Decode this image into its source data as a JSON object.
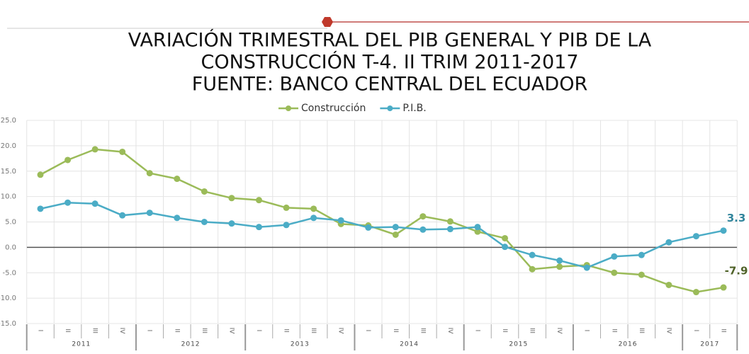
{
  "chart_data": {
    "type": "line",
    "title_lines": [
      "VARIACIÓN TRIMESTRAL DEL PIB GENERAL Y  PIB DE LA",
      "CONSTRUCCIÓN  T-4. II TRIM 2011-2017",
      "FUENTE: BANCO CENTRAL DEL ECUADOR"
    ],
    "categories": [
      "I",
      "II",
      "III",
      "IV",
      "I",
      "II",
      "III",
      "IV",
      "I",
      "II",
      "III",
      "IV",
      "I",
      "II",
      "III",
      "IV",
      "I",
      "II",
      "III",
      "IV",
      "I",
      "II",
      "III",
      "IV",
      "I",
      "II"
    ],
    "years": [
      "2011",
      "2012",
      "2013",
      "2014",
      "2015",
      "2016",
      "2017"
    ],
    "series": [
      {
        "name": "Construcción",
        "color": "#9bbb59",
        "values": [
          14.3,
          17.2,
          19.3,
          18.8,
          14.6,
          13.5,
          11.0,
          9.7,
          9.3,
          7.8,
          7.6,
          4.6,
          4.3,
          2.5,
          6.1,
          5.1,
          3.1,
          1.8,
          -4.3,
          -3.8,
          -3.5,
          -5.0,
          -5.4,
          -7.4,
          -8.8,
          -7.9
        ]
      },
      {
        "name": "P.I.B.",
        "color": "#4bacc6",
        "values": [
          7.6,
          8.8,
          8.6,
          6.3,
          6.8,
          5.8,
          5.0,
          4.7,
          4.0,
          4.4,
          5.8,
          5.3,
          3.9,
          4.0,
          3.5,
          3.6,
          4.0,
          0.1,
          -1.5,
          -2.6,
          -4.0,
          -1.8,
          -1.5,
          1.0,
          2.2,
          3.3
        ]
      }
    ],
    "ylim": [
      -15,
      25
    ],
    "yticks": [
      {
        "value": -15,
        "label": "-15.0"
      },
      {
        "value": -10,
        "label": "-10.0"
      },
      {
        "value": -5,
        "label": "-5.0"
      },
      {
        "value": 0,
        "label": "0.0"
      },
      {
        "value": 5,
        "label": "5.0"
      },
      {
        "value": 10,
        "label": "10.0"
      },
      {
        "value": 15,
        "label": "15.0"
      },
      {
        "value": 20,
        "label": "20.0"
      },
      {
        "value": 25,
        "label": "25.0"
      }
    ],
    "grid": true
  }
}
